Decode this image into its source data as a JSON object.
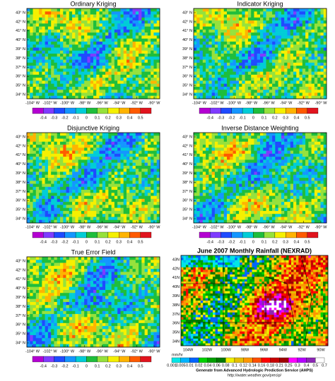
{
  "lat_labels": [
    "43° N",
    "42° N",
    "41° N",
    "40° N",
    "39° N",
    "38° N",
    "37° N",
    "36° N",
    "35° N",
    "34° N"
  ],
  "lon_labels": [
    "-104° W",
    "-102° W",
    "-100° W",
    "-98° W",
    "-96° W",
    "-94° W",
    "-92° W",
    "-90° W"
  ],
  "colorbar": {
    "ticks": [
      -0.4,
      -0.3,
      -0.2,
      -0.1,
      0,
      0.1,
      0.2,
      0.3,
      0.4,
      0.5
    ],
    "colors": [
      "#b400d2",
      "#7f3cff",
      "#1f4bff",
      "#1496ff",
      "#00cdd7",
      "#1ebe3c",
      "#96e13c",
      "#f5f000",
      "#ffb400",
      "#ff5a00",
      "#e1141e"
    ]
  },
  "panels": [
    {
      "title": "Ordinary Kriging"
    },
    {
      "title": "Indicator Kriging"
    },
    {
      "title": "Disjunctive Kriging"
    },
    {
      "title": "Inverse Distance Weighting"
    },
    {
      "title": "True Error Field"
    }
  ],
  "nexrad": {
    "title": "June 2007  Monthly Rainfall (NEXRAD)",
    "lat_labels": [
      "43N",
      "42N",
      "41N",
      "40N",
      "39N",
      "38N",
      "37N",
      "36N",
      "35N",
      "34N"
    ],
    "lon_labels": [
      "104W",
      "102W",
      "100W",
      "98W",
      "96W",
      "94W",
      "92W",
      "90W"
    ],
    "unit": "mm/hr",
    "ticks": [
      0.001,
      0.005,
      0.01,
      0.02,
      0.04,
      0.06,
      0.08,
      0.1,
      0.12,
      0.14,
      0.16,
      0.18,
      0.21,
      0.25,
      0.3,
      0.4,
      0.5,
      0.7
    ],
    "colors": [
      "#00e6e6",
      "#00b4ff",
      "#0064ff",
      "#00d200",
      "#00a000",
      "#007800",
      "#f0f000",
      "#e6be00",
      "#ff9600",
      "#ff5000",
      "#ff0000",
      "#c80000",
      "#a00000",
      "#ff00ff",
      "#b400ff",
      "#8c28b4",
      "#ffffff"
    ],
    "source": "Generate from Advanced Hydrologic Prediction Service (AHPS)",
    "url": "http://water.weather.gov/precip/"
  }
}
